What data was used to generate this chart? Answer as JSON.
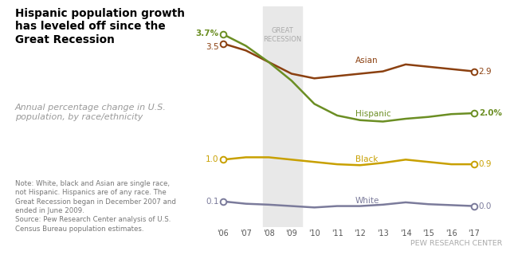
{
  "years": [
    2006,
    2007,
    2008,
    2009,
    2010,
    2011,
    2012,
    2013,
    2014,
    2015,
    2016,
    2017
  ],
  "asian": [
    3.5,
    3.35,
    3.1,
    2.85,
    2.75,
    2.8,
    2.85,
    2.9,
    3.05,
    3.0,
    2.95,
    2.9
  ],
  "hispanic": [
    3.7,
    3.45,
    3.1,
    2.7,
    2.2,
    1.95,
    1.85,
    1.82,
    1.88,
    1.92,
    1.98,
    2.0
  ],
  "black": [
    1.0,
    1.05,
    1.05,
    1.0,
    0.95,
    0.9,
    0.88,
    0.93,
    1.0,
    0.95,
    0.9,
    0.9
  ],
  "white": [
    0.1,
    0.05,
    0.03,
    0.0,
    -0.03,
    0.0,
    0.0,
    0.03,
    0.08,
    0.04,
    0.02,
    0.0
  ],
  "asian_color": "#8B4010",
  "hispanic_color": "#6B8E23",
  "black_color": "#C8A000",
  "white_color": "#7B7B9B",
  "recession_start": 2007.75,
  "recession_end": 2009.45,
  "recession_color": "#e8e8e8",
  "title": "Hispanic population growth\nhas leveled off since the\nGreat Recession",
  "subtitle": "Annual percentage change in U.S.\npopulation, by race/ethnicity",
  "note": "Note: White, black and Asian are single race,\nnot Hispanic. Hispanics are of any race. The\nGreat Recession began in December 2007 and\nended in June 2009.\nSource: Pew Research Center analysis of U.S.\nCensus Bureau population estimates.",
  "source_label": "PEW RESEARCH CENTER",
  "left_labels_start": [
    "3.7%",
    "3.5",
    "1.0",
    "0.1"
  ],
  "right_labels_end": [
    "2.9",
    "2.0%",
    "0.9",
    "0.0"
  ],
  "series_labels": [
    "Asian",
    "Hispanic",
    "Black",
    "White"
  ],
  "xlim": [
    2005.5,
    2017.9
  ],
  "ylim": [
    -0.45,
    4.3
  ]
}
